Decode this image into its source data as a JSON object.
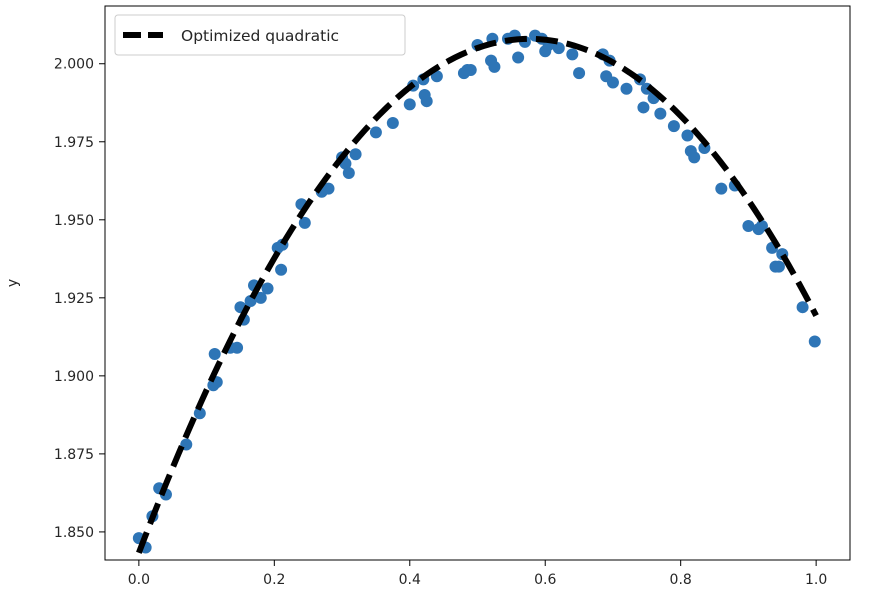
{
  "chart_data": {
    "type": "scatter",
    "title": "",
    "xlabel": "",
    "ylabel": "y",
    "xlim": [
      -0.05,
      1.05
    ],
    "ylim": [
      1.841,
      2.0185
    ],
    "xticks": [
      0.0,
      0.2,
      0.4,
      0.6,
      0.8,
      1.0
    ],
    "xtick_labels": [
      "0.0",
      "0.2",
      "0.4",
      "0.6",
      "0.8",
      "1.0"
    ],
    "yticks": [
      1.85,
      1.875,
      1.9,
      1.925,
      1.95,
      1.975,
      2.0
    ],
    "ytick_labels": [
      "1.850",
      "1.875",
      "1.900",
      "1.925",
      "1.950",
      "1.975",
      "2.000"
    ],
    "grid": false,
    "legend": {
      "position": "top-left",
      "entries": [
        "Optimized quadratic"
      ]
    },
    "colors": {
      "points": "#2e75b6",
      "fit_line": "#000000",
      "frame": "#000000"
    },
    "series": [
      {
        "kind": "scatter",
        "x": [
          0.0,
          0.01,
          0.02,
          0.03,
          0.04,
          0.07,
          0.09,
          0.11,
          0.112,
          0.115,
          0.135,
          0.145,
          0.15,
          0.155,
          0.165,
          0.17,
          0.18,
          0.19,
          0.205,
          0.21,
          0.212,
          0.24,
          0.245,
          0.27,
          0.28,
          0.3,
          0.305,
          0.31,
          0.32,
          0.35,
          0.375,
          0.4,
          0.405,
          0.42,
          0.422,
          0.425,
          0.44,
          0.48,
          0.485,
          0.49,
          0.5,
          0.52,
          0.522,
          0.525,
          0.545,
          0.555,
          0.56,
          0.57,
          0.585,
          0.595,
          0.6,
          0.605,
          0.62,
          0.64,
          0.65,
          0.685,
          0.69,
          0.695,
          0.7,
          0.72,
          0.74,
          0.745,
          0.75,
          0.76,
          0.77,
          0.79,
          0.81,
          0.815,
          0.82,
          0.835,
          0.86,
          0.88,
          0.9,
          0.915,
          0.92,
          0.935,
          0.94,
          0.945,
          0.95,
          0.98,
          0.998
        ],
        "y": [
          1.848,
          1.845,
          1.855,
          1.864,
          1.862,
          1.878,
          1.888,
          1.897,
          1.907,
          1.898,
          1.909,
          1.909,
          1.922,
          1.918,
          1.924,
          1.929,
          1.925,
          1.928,
          1.941,
          1.934,
          1.942,
          1.955,
          1.949,
          1.959,
          1.96,
          1.97,
          1.968,
          1.965,
          1.971,
          1.978,
          1.981,
          1.987,
          1.993,
          1.995,
          1.99,
          1.988,
          1.996,
          1.997,
          1.998,
          1.998,
          2.006,
          2.001,
          2.008,
          1.999,
          2.008,
          2.009,
          2.002,
          2.007,
          2.009,
          2.008,
          2.004,
          2.006,
          2.005,
          2.003,
          1.997,
          2.003,
          1.996,
          2.001,
          1.994,
          1.992,
          1.995,
          1.986,
          1.992,
          1.989,
          1.984,
          1.98,
          1.977,
          1.972,
          1.97,
          1.973,
          1.96,
          1.961,
          1.948,
          1.947,
          1.948,
          1.941,
          1.935,
          1.935,
          1.939,
          1.922,
          1.911
        ]
      },
      {
        "kind": "line",
        "name": "Optimized quadratic",
        "style": "dashed",
        "coefficients": {
          "a": -0.495,
          "b": 0.571,
          "c": 1.8433
        },
        "x_range": [
          0.0,
          1.0
        ]
      }
    ]
  }
}
